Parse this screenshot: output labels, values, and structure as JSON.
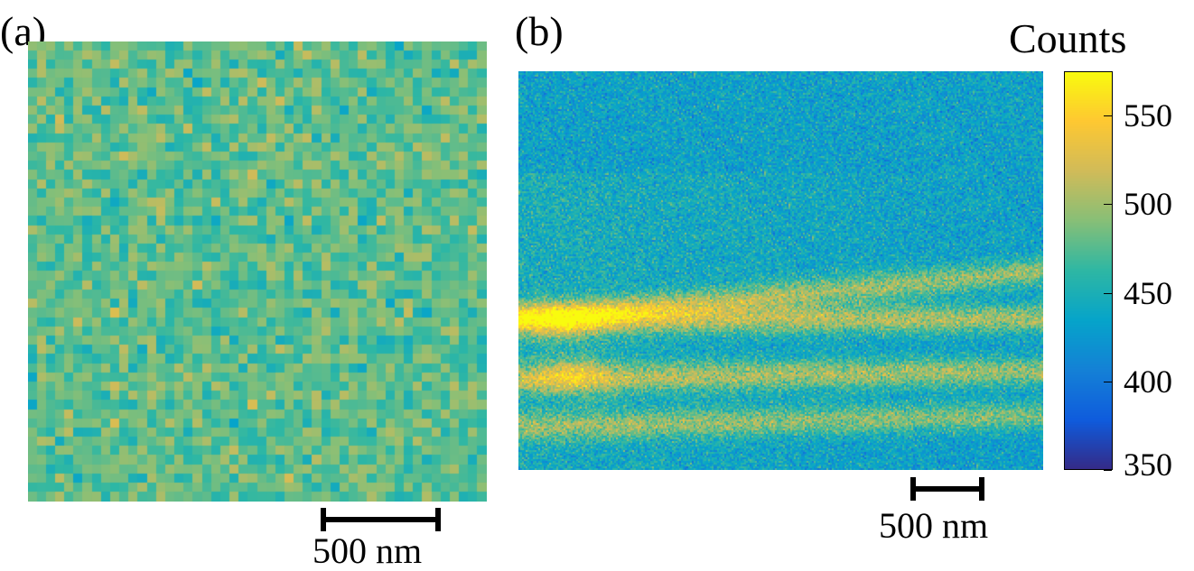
{
  "panels": {
    "a": {
      "label": "(a)",
      "scalebar_text": "500 nm"
    },
    "b": {
      "label": "(b)",
      "scalebar_text": "500 nm"
    }
  },
  "colorbar": {
    "title": "Counts",
    "ticks": [
      "550",
      "500",
      "450",
      "400",
      "350"
    ],
    "tick_values": [
      550,
      500,
      450,
      400,
      350
    ],
    "range": [
      350,
      575
    ],
    "colormap": "parula",
    "colormap_stops": [
      "#352a87",
      "#0f5cdd",
      "#1481d6",
      "#06a4ca",
      "#2eb7a4",
      "#87bf77",
      "#d1bb59",
      "#fec832",
      "#f9fb0e"
    ]
  }
}
